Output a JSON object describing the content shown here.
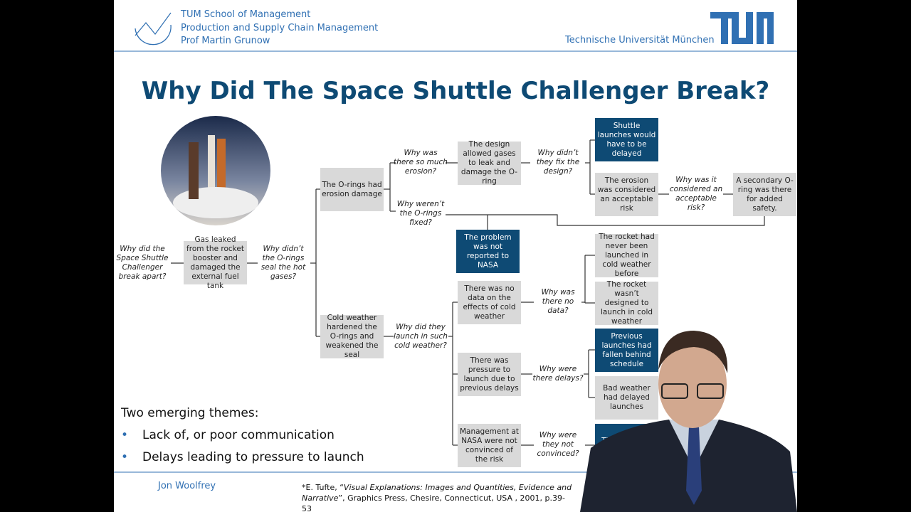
{
  "header": {
    "lines": [
      "TUM School of Management",
      "Production and Supply Chain Management",
      "Prof Martin Grunow"
    ],
    "university": "Technische Universität München"
  },
  "title": "Why Did The Space Shuttle Challenger Break?",
  "nodes": [
    {
      "text": "Why did the Space Shuttle Challenger break apart?",
      "kind": "question"
    },
    {
      "text": "Gas leaked from the rocket booster and damaged the external fuel tank",
      "kind": "box"
    },
    {
      "text": "Why didn’t the O-rings seal the hot gases?",
      "kind": "question"
    },
    {
      "text": "The O-rings had erosion damage",
      "kind": "box"
    },
    {
      "text": "Cold weather hardened the O-rings and weakened the seal",
      "kind": "box"
    },
    {
      "text": "Why was there so much erosion?",
      "kind": "question"
    },
    {
      "text": "Why weren’t the O-rings fixed?",
      "kind": "question"
    },
    {
      "text": "The design allowed gases to leak and damage the O-ring",
      "kind": "box"
    },
    {
      "text": "Why didn’t they fix the design?",
      "kind": "question"
    },
    {
      "text": "Shuttle launches would have to be delayed",
      "kind": "root"
    },
    {
      "text": "The erosion was considered an acceptable risk",
      "kind": "box"
    },
    {
      "text": "Why was it considered an acceptable risk?",
      "kind": "question"
    },
    {
      "text": "A secondary O-ring was there for added safety.",
      "kind": "box"
    },
    {
      "text": "The problem was not reported to NASA",
      "kind": "root"
    },
    {
      "text": "Why did they launch in such cold weather?",
      "kind": "question"
    },
    {
      "text": "There was no data on the effects of cold weather",
      "kind": "box"
    },
    {
      "text": "Why was there no data?",
      "kind": "question"
    },
    {
      "text": "The rocket had never been launched in cold weather before",
      "kind": "box"
    },
    {
      "text": "The rocket wasn’t designed to launch in cold weather",
      "kind": "box"
    },
    {
      "text": "There was pressure to launch due to previous delays",
      "kind": "box"
    },
    {
      "text": "Why were there delays?",
      "kind": "question"
    },
    {
      "text": "Previous launches had fallen behind schedule",
      "kind": "root"
    },
    {
      "text": "Bad weather had delayed launches",
      "kind": "box"
    },
    {
      "text": "Management at NASA were not convinced of the risk",
      "kind": "box"
    },
    {
      "text": "Why were they not convinced?",
      "kind": "question"
    },
    {
      "text": "The evidence presented",
      "kind": "root"
    }
  ],
  "themes": {
    "heading": "Two emerging themes:",
    "items": [
      "Lack of, or poor communication",
      "Delays leading to pressure to launch"
    ]
  },
  "footer": {
    "author": "Jon Woolfrey",
    "citation_prefix": "*E. Tufte, “",
    "citation_title": "Visual Explanations: Images and Quantities, Evidence and Narrative",
    "citation_rest": "”, Graphics Press, Chesire, Connecticut, USA , 2001, p.39-53"
  }
}
